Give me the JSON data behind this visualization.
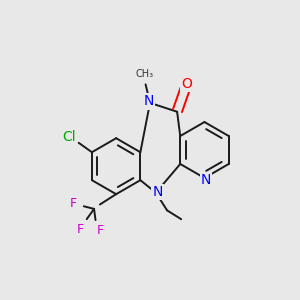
{
  "background_color": "#e8e8e8",
  "bond_color": "#1a1a1a",
  "bond_width": 1.4,
  "atom_colors": {
    "N": "#0000ff",
    "O": "#ff0000",
    "Cl": "#00aa00",
    "F": "#cc00cc",
    "C": "#1a1a1a"
  },
  "font_size_main": 10,
  "font_size_small": 8,
  "font_size_methyl": 8
}
